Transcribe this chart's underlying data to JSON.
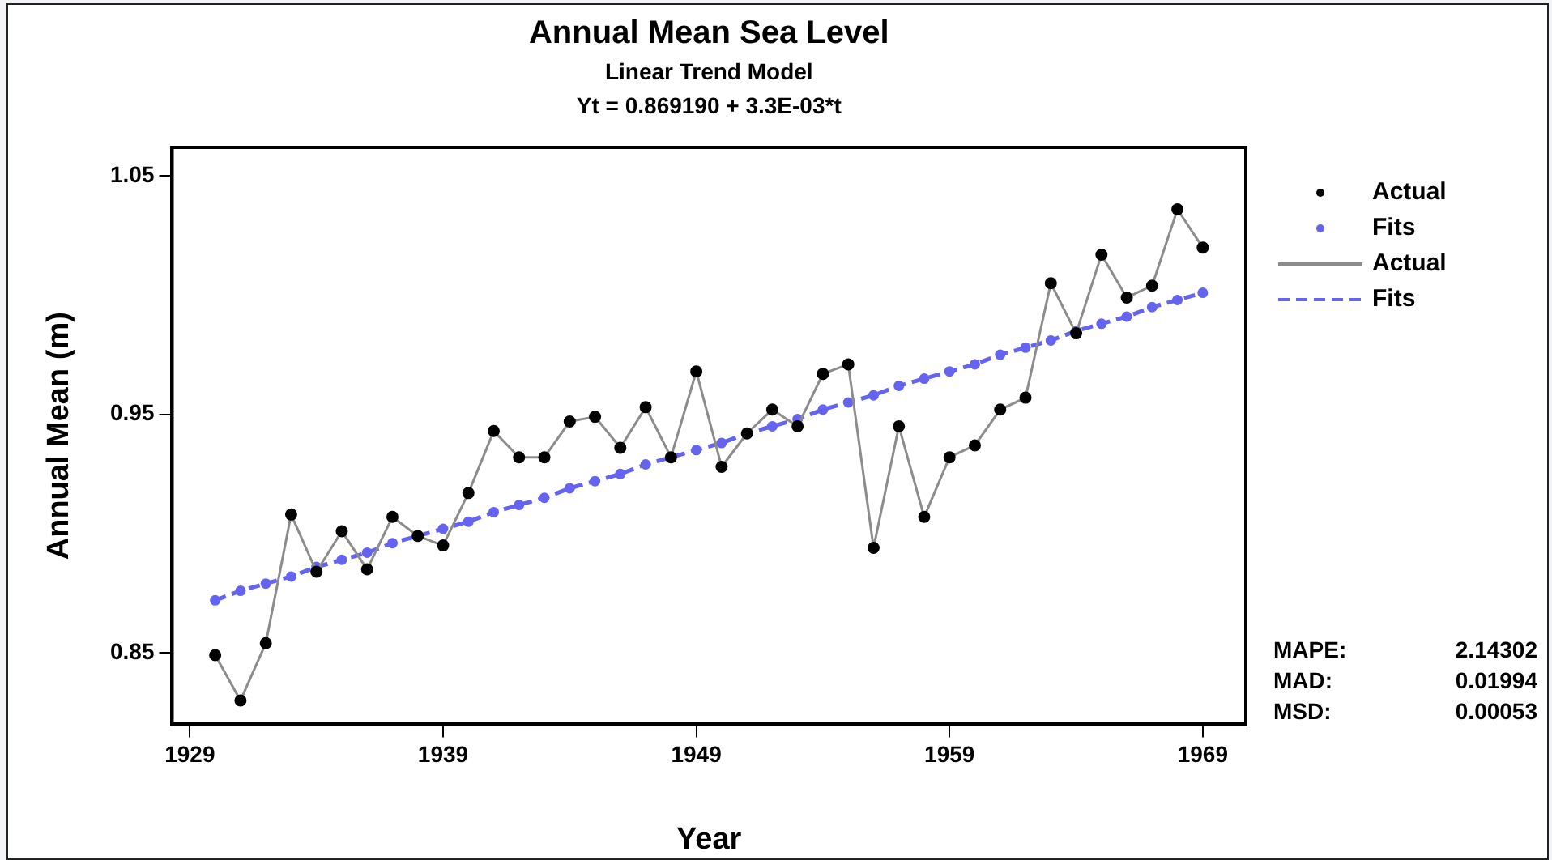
{
  "chart_data": {
    "type": "line",
    "title": "Annual Mean Sea Level",
    "subtitle": "Linear Trend Model",
    "xlabel": "Year",
    "ylabel": "Annual Mean (m)",
    "annotations": [
      "Yt = 0.869190 + 3.3E-03*t",
      "MAPE: 2.14302",
      "MAD: 0.01994",
      "MSD: 0.00053"
    ],
    "x": [
      1930,
      1931,
      1932,
      1933,
      1934,
      1935,
      1936,
      1937,
      1938,
      1939,
      1940,
      1941,
      1942,
      1943,
      1944,
      1945,
      1946,
      1947,
      1948,
      1949,
      1950,
      1951,
      1952,
      1953,
      1954,
      1955,
      1956,
      1957,
      1958,
      1959,
      1960,
      1961,
      1962,
      1963,
      1964,
      1965,
      1966,
      1967,
      1968,
      1969
    ],
    "series": [
      {
        "name": "Actual",
        "color": "#8c8c8c",
        "line_style": "solid",
        "values": [
          0.849,
          0.83,
          0.854,
          0.908,
          0.884,
          0.901,
          0.885,
          0.907,
          0.899,
          0.895,
          0.917,
          0.943,
          0.932,
          0.932,
          0.947,
          0.949,
          0.936,
          0.953,
          0.932,
          0.968,
          0.928,
          0.942,
          0.952,
          0.945,
          0.967,
          0.971,
          0.894,
          0.945,
          0.907,
          0.932,
          0.937,
          0.952,
          0.957,
          1.005,
          0.984,
          1.017,
          0.999,
          1.004,
          1.036,
          1.02
        ]
      },
      {
        "name": "Fits",
        "color": "#6464f0",
        "line_style": "dashed",
        "values": [
          0.872,
          0.876,
          0.879,
          0.882,
          0.886,
          0.889,
          0.892,
          0.896,
          0.899,
          0.902,
          0.905,
          0.909,
          0.912,
          0.915,
          0.919,
          0.922,
          0.925,
          0.929,
          0.932,
          0.935,
          0.938,
          0.942,
          0.945,
          0.948,
          0.952,
          0.955,
          0.958,
          0.962,
          0.965,
          0.968,
          0.971,
          0.975,
          0.978,
          0.981,
          0.985,
          0.988,
          0.991,
          0.995,
          0.998,
          1.001
        ]
      }
    ],
    "xlim": [
      1928.3,
      1970.7
    ],
    "xticks": [
      1929,
      1939,
      1949,
      1959,
      1969
    ],
    "ylim": [
      0.82,
      1.062
    ],
    "yticks": [
      0.85,
      0.95,
      1.05
    ],
    "marker": "circle",
    "grid": false,
    "legend": "top right"
  }
}
